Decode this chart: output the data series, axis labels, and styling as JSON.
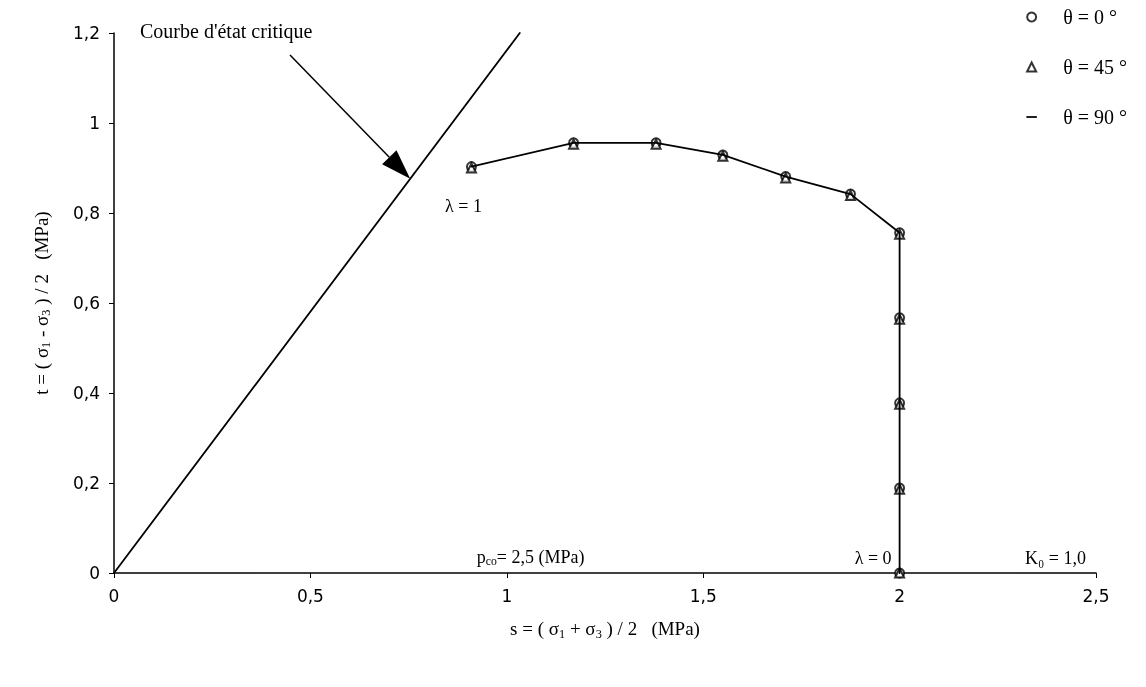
{
  "chart_data": {
    "type": "scatter",
    "xlabel": "s = ( σ$_{1}$ + σ$_{3}$ ) / 2   (MPa)",
    "ylabel": "t = ( σ$_{1}$ - σ$_{3}$ ) / 2   (MPa)",
    "xlim": [
      0,
      2.5
    ],
    "xticks": [
      0,
      {
        "value": 0.5,
        "label": "0,5"
      },
      1,
      {
        "value": 1.5,
        "label": "1,5"
      },
      2,
      {
        "value": 2.5,
        "label": "2,5"
      }
    ],
    "ylim": [
      0,
      1.2
    ],
    "yticks": [
      0,
      {
        "value": 0.2,
        "label": "0,2"
      },
      {
        "value": 0.4,
        "label": "0,4"
      },
      {
        "value": 0.6,
        "label": "0,6"
      },
      {
        "value": 0.8,
        "label": "0,8"
      },
      1,
      {
        "value": 1.2,
        "label": "1,2"
      }
    ],
    "grid": false,
    "legend": "top right",
    "series": [
      {
        "name": "θ = 0 °",
        "marker": "circle",
        "color": "#000000",
        "x": [
          0.91,
          1.17,
          1.38,
          1.55,
          1.71,
          1.875,
          2.0,
          2.0,
          2.0,
          2.0,
          2.0
        ],
        "values": [
          0.903,
          0.956,
          0.956,
          0.929,
          0.881,
          0.842,
          0.756,
          0.567,
          0.378,
          0.189,
          0
        ]
      },
      {
        "name": "θ = 45 °",
        "marker": "triangle",
        "color": "#000000",
        "x": [
          0.91,
          1.17,
          1.38,
          1.55,
          1.71,
          1.875,
          2.0,
          2.0,
          2.0,
          2.0,
          2.0
        ],
        "values": [
          0.9,
          0.953,
          0.953,
          0.926,
          0.878,
          0.839,
          0.753,
          0.564,
          0.375,
          0.186,
          0
        ]
      },
      {
        "name": "θ = 90 °",
        "type": "line",
        "marker": "none",
        "color": "#000000",
        "x": [
          0.91,
          1.17,
          1.38,
          1.55,
          1.71,
          1.875,
          2.0,
          2.0,
          2.0,
          2.0,
          2.0
        ],
        "values": [
          0.903,
          0.956,
          0.956,
          0.929,
          0.881,
          0.842,
          0.756,
          0.567,
          0.378,
          0.189,
          0
        ]
      },
      {
        "type": "line",
        "marker": "none",
        "color": "#000000",
        "x": [
          0,
          1.033
        ],
        "values": [
          0,
          1.2
        ]
      }
    ],
    "annotations": [
      "Courbe d'état critique",
      {
        "text": "λ = 1",
        "x": 0.91,
        "y": 0.903
      },
      {
        "text": "λ = 0",
        "x": 2.0,
        "y": 0
      },
      "p$_{co}$= 2,5 (MPa)",
      "K₀ = 1,0"
    ]
  }
}
